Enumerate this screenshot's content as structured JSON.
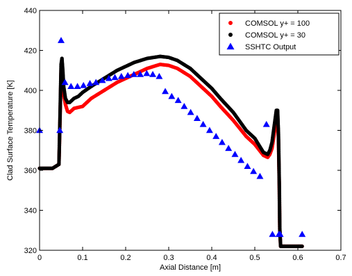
{
  "chart_data": {
    "type": "scatter",
    "xlabel": "Axial Distance [m]",
    "ylabel": "Clad Surface Temperature [K]",
    "xlim": [
      0,
      0.7
    ],
    "ylim": [
      320,
      440
    ],
    "x_ticks": [
      0,
      0.1,
      0.2,
      0.3,
      0.4,
      0.5,
      0.6,
      0.7
    ],
    "y_ticks": [
      320,
      340,
      360,
      380,
      400,
      420,
      440
    ],
    "x_tick_labels": [
      "0",
      "0.1",
      "0.2",
      "0.3",
      "0.4",
      "0.5",
      "0.6",
      "0.7"
    ],
    "y_tick_labels": [
      "320",
      "340",
      "360",
      "380",
      "400",
      "420",
      "440"
    ],
    "grid": false,
    "legend_position": "top-right",
    "series": [
      {
        "name": "COMSOL y+ = 100",
        "color": "#ff0000",
        "marker": "circle",
        "x": [
          0,
          0.03,
          0.045,
          0.048,
          0.05,
          0.052,
          0.054,
          0.056,
          0.06,
          0.065,
          0.07,
          0.08,
          0.09,
          0.1,
          0.12,
          0.15,
          0.18,
          0.2,
          0.22,
          0.25,
          0.28,
          0.3,
          0.32,
          0.35,
          0.38,
          0.4,
          0.42,
          0.45,
          0.48,
          0.5,
          0.52,
          0.53,
          0.535,
          0.54,
          0.545,
          0.55,
          0.553,
          0.555,
          0.557,
          0.558,
          0.56,
          0.57,
          0.6,
          0.61
        ],
        "y": [
          361,
          361,
          363,
          390,
          410,
          414,
          405,
          398,
          393,
          389.5,
          389,
          391,
          391.5,
          392,
          396,
          400,
          404,
          406,
          408,
          411,
          413,
          412.5,
          411,
          407,
          401,
          397,
          392,
          385,
          377,
          373,
          367.5,
          366.5,
          368,
          371,
          378,
          387,
          387,
          375,
          350,
          330,
          322,
          322,
          322,
          322
        ]
      },
      {
        "name": "COMSOL y+ = 30",
        "color": "#000000",
        "marker": "circle",
        "x": [
          0,
          0.03,
          0.045,
          0.048,
          0.05,
          0.052,
          0.054,
          0.056,
          0.06,
          0.065,
          0.07,
          0.08,
          0.09,
          0.1,
          0.12,
          0.15,
          0.18,
          0.2,
          0.22,
          0.25,
          0.28,
          0.3,
          0.32,
          0.35,
          0.38,
          0.4,
          0.42,
          0.45,
          0.48,
          0.5,
          0.52,
          0.53,
          0.535,
          0.54,
          0.545,
          0.55,
          0.553,
          0.555,
          0.557,
          0.558,
          0.56,
          0.57,
          0.6,
          0.61
        ],
        "y": [
          361,
          361,
          363,
          392,
          413,
          416,
          410,
          402,
          396,
          394,
          394,
          396,
          397,
          399,
          402,
          406,
          410,
          412,
          414,
          416,
          417,
          416.5,
          415,
          411,
          405,
          401,
          396,
          389,
          380,
          376,
          369,
          368,
          370,
          374,
          382,
          390,
          390,
          378,
          352,
          331,
          322,
          322,
          322,
          322
        ]
      },
      {
        "name": "SSHTC Output",
        "color": "#0000ff",
        "marker": "triangle",
        "x": [
          0,
          0.047,
          0.05,
          0.059,
          0.073,
          0.088,
          0.102,
          0.117,
          0.131,
          0.146,
          0.161,
          0.175,
          0.19,
          0.205,
          0.219,
          0.234,
          0.249,
          0.263,
          0.278,
          0.292,
          0.307,
          0.322,
          0.336,
          0.351,
          0.366,
          0.38,
          0.395,
          0.41,
          0.424,
          0.439,
          0.454,
          0.468,
          0.483,
          0.497,
          0.512,
          0.527,
          0.541,
          0.556,
          0.559,
          0.61
        ],
        "y": [
          380,
          380,
          425,
          404,
          402,
          402,
          402.5,
          403.5,
          404,
          405,
          406,
          406.5,
          407,
          407.5,
          408,
          408,
          408.5,
          408,
          407,
          399.5,
          397,
          395,
          392,
          389,
          386,
          383,
          380,
          377,
          374,
          371,
          368,
          365,
          362,
          359.5,
          357,
          383,
          328,
          328,
          328,
          328
        ]
      }
    ]
  }
}
